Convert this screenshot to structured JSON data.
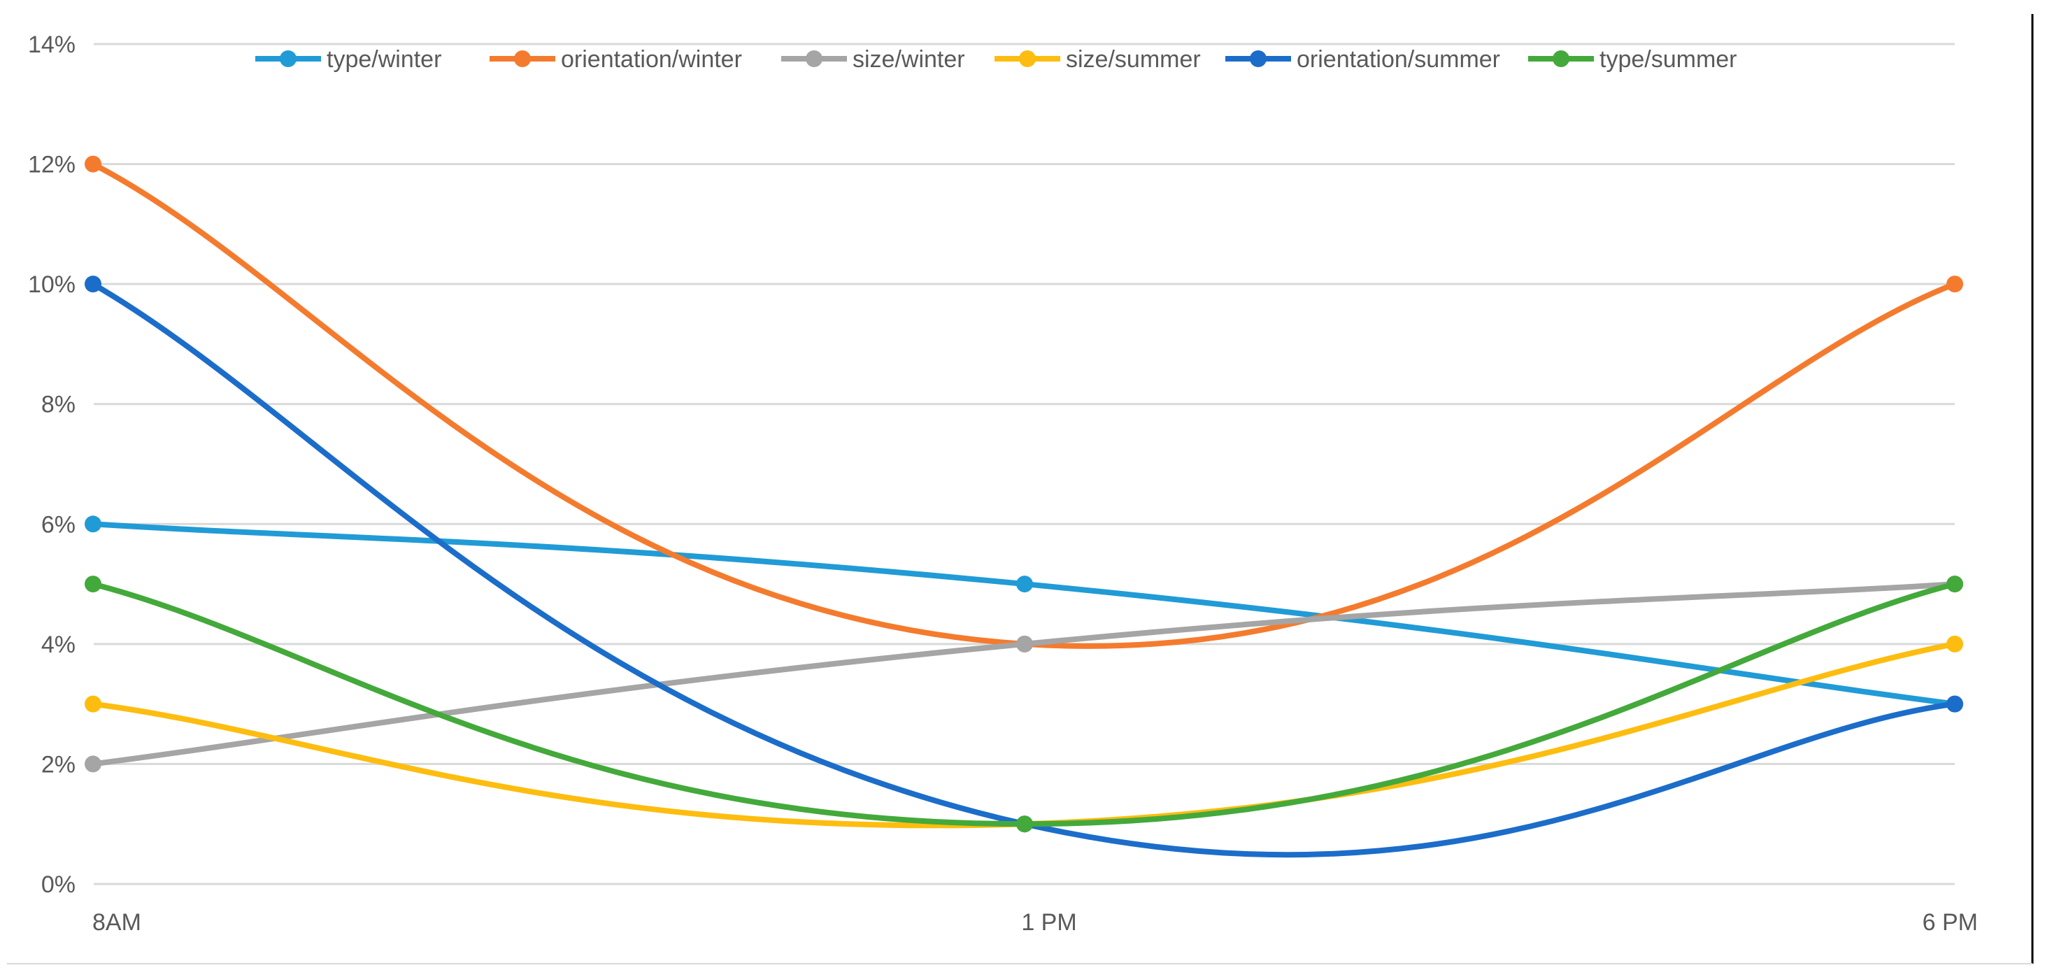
{
  "chart_data": {
    "type": "line",
    "categories": [
      "8AM",
      "1 PM",
      "6 PM"
    ],
    "ylim": [
      0,
      14
    ],
    "yticks": [
      0,
      2,
      4,
      6,
      8,
      10,
      12,
      14
    ],
    "ytick_labels": [
      "0%",
      "2%",
      "4%",
      "6%",
      "8%",
      "10%",
      "12%",
      "14%"
    ],
    "y_unit": "%",
    "grid": true,
    "smooth": true,
    "legend_position": "top",
    "series": [
      {
        "name": "type/winter",
        "color": "#219bd6",
        "values": [
          6,
          5,
          3
        ]
      },
      {
        "name": "orientation/winter",
        "color": "#f47b2e",
        "values": [
          12,
          4,
          10
        ]
      },
      {
        "name": "size/winter",
        "color": "#a5a5a5",
        "values": [
          2,
          4,
          5
        ]
      },
      {
        "name": "size/summer",
        "color": "#fdbd10",
        "values": [
          3,
          1,
          4
        ]
      },
      {
        "name": "orientation/summer",
        "color": "#1c6dc9",
        "values": [
          10,
          1,
          3
        ]
      },
      {
        "name": "type/summer",
        "color": "#44a93b",
        "values": [
          5,
          1,
          5
        ]
      }
    ]
  }
}
